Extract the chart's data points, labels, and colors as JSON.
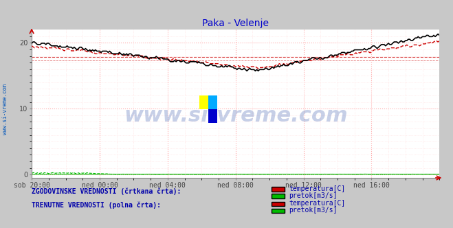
{
  "title": "Paka - Velenje",
  "title_color": "#0000cc",
  "bg_color": "#c8c8c8",
  "plot_bg_color": "#ffffff",
  "grid_color_major": "#ffaaaa",
  "grid_color_minor": "#ffdddd",
  "watermark": "www.si-vreme.com",
  "xlabel_ticks": [
    "sob 20:00",
    "ned 00:00",
    "ned 04:00",
    "ned 08:00",
    "ned 12:00",
    "ned 16:00"
  ],
  "yticks": [
    0,
    10,
    20
  ],
  "ylim": [
    -0.5,
    22
  ],
  "xlim": [
    0,
    288
  ],
  "tick_positions": [
    0,
    48,
    96,
    144,
    192,
    240
  ],
  "temp_current_color": "#000000",
  "temp_historic_color": "#cc0000",
  "flow_current_color": "#00bb00",
  "flow_historic_color": "#00bb00",
  "hline1_y": 17.8,
  "hline2_y": 17.3,
  "legend_text_hist": "ZGODOVINSKE VREDNOSTI (črtkana črta):",
  "legend_text_curr": "TRENUTNE VREDNOSTI (polna črta):",
  "legend_temp": "temperatura[C]",
  "legend_flow": "pretok[m3/s]",
  "sidebar_text": "www.si-vreme.com",
  "sidebar_color": "#0055bb"
}
